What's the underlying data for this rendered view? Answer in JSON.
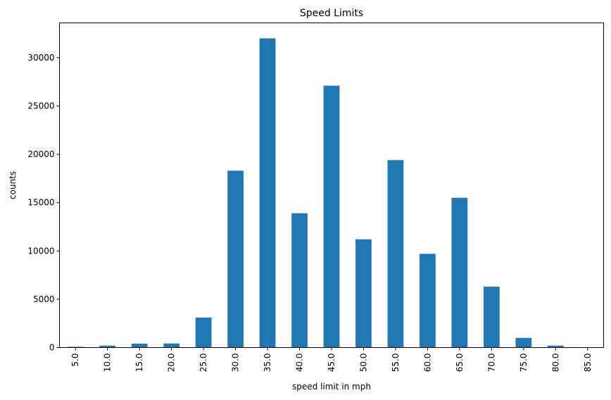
{
  "chart_data": {
    "type": "bar",
    "title": "Speed Limits",
    "xlabel": "speed limit in mph",
    "ylabel": "counts",
    "categories": [
      "5.0",
      "10.0",
      "15.0",
      "20.0",
      "25.0",
      "30.0",
      "35.0",
      "40.0",
      "45.0",
      "50.0",
      "55.0",
      "60.0",
      "65.0",
      "70.0",
      "75.0",
      "80.0",
      "85.0"
    ],
    "values": [
      80,
      200,
      400,
      420,
      3100,
      18300,
      32000,
      13900,
      27100,
      11200,
      19400,
      9700,
      15500,
      6300,
      1000,
      200,
      10
    ],
    "ylim": [
      0,
      33600
    ],
    "yticks": [
      0,
      5000,
      10000,
      15000,
      20000,
      25000,
      30000
    ],
    "ytick_labels": [
      "0",
      "5000",
      "10000",
      "15000",
      "20000",
      "25000",
      "30000"
    ],
    "x_tick_rotation": "vertical",
    "grid": false,
    "legend": "none",
    "bar_color": "#1f77b4"
  }
}
